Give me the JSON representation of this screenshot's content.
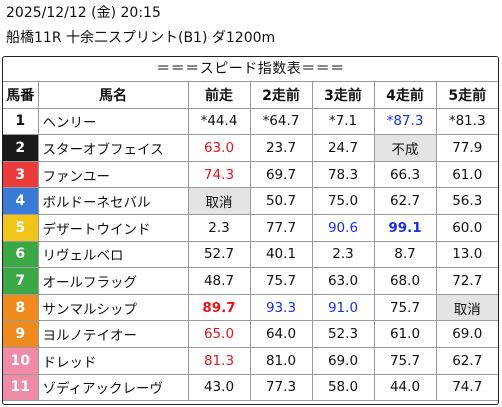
{
  "header": {
    "date": "2025/12/12 (金) 20:15",
    "race": "船橋11R 十余二スプリント(B1) ダ1200m"
  },
  "table": {
    "title": "＝＝＝スピード指数表＝＝＝",
    "columns": [
      "馬番",
      "馬名",
      "前走",
      "2走前",
      "3走前",
      "4走前",
      "5走前"
    ],
    "rows": [
      {
        "num": "1",
        "name": "ヘンリー",
        "color": "#ffffff",
        "numColor": "#111111",
        "vals": [
          {
            "v": "*44.4"
          },
          {
            "v": "*64.7"
          },
          {
            "v": "*7.1"
          },
          {
            "v": "*87.3",
            "s": "blue"
          },
          {
            "v": "*81.3"
          }
        ]
      },
      {
        "num": "2",
        "name": "スターオブフェイス",
        "color": "#1a1a1a",
        "numColor": "#ffffff",
        "vals": [
          {
            "v": "63.0",
            "s": "red"
          },
          {
            "v": "23.7"
          },
          {
            "v": "24.7"
          },
          {
            "v": "不成",
            "s": "gray"
          },
          {
            "v": "77.9"
          }
        ]
      },
      {
        "num": "3",
        "name": "ファンユー",
        "color": "#ec3b3b",
        "numColor": "#ffffff",
        "vals": [
          {
            "v": "74.3",
            "s": "red"
          },
          {
            "v": "69.7"
          },
          {
            "v": "78.3"
          },
          {
            "v": "66.3"
          },
          {
            "v": "61.0"
          }
        ]
      },
      {
        "num": "4",
        "name": "ボルドーネセバル",
        "color": "#3a7bd5",
        "numColor": "#ffffff",
        "vals": [
          {
            "v": "取消",
            "s": "gray"
          },
          {
            "v": "50.7"
          },
          {
            "v": "75.0"
          },
          {
            "v": "62.7"
          },
          {
            "v": "56.3"
          }
        ]
      },
      {
        "num": "5",
        "name": "デザートウインド",
        "color": "#f0c419",
        "numColor": "#ffffff",
        "vals": [
          {
            "v": "2.3"
          },
          {
            "v": "77.7"
          },
          {
            "v": "90.6",
            "s": "blue"
          },
          {
            "v": "99.1",
            "s": "blue bold"
          },
          {
            "v": "60.0"
          }
        ]
      },
      {
        "num": "6",
        "name": "リヴェルベロ",
        "color": "#3aa845",
        "numColor": "#ffffff",
        "vals": [
          {
            "v": "52.7"
          },
          {
            "v": "40.1"
          },
          {
            "v": "2.3"
          },
          {
            "v": "8.7"
          },
          {
            "v": "13.0"
          }
        ]
      },
      {
        "num": "7",
        "name": "オールフラッグ",
        "color": "#3aa845",
        "numColor": "#ffffff",
        "vals": [
          {
            "v": "48.7"
          },
          {
            "v": "75.7"
          },
          {
            "v": "63.0"
          },
          {
            "v": "68.0"
          },
          {
            "v": "72.7"
          }
        ]
      },
      {
        "num": "8",
        "name": "サンマルシップ",
        "color": "#ef8a1e",
        "numColor": "#ffffff",
        "vals": [
          {
            "v": "89.7",
            "s": "red bold"
          },
          {
            "v": "93.3",
            "s": "blue"
          },
          {
            "v": "91.0",
            "s": "blue"
          },
          {
            "v": "75.7"
          },
          {
            "v": "取消",
            "s": "gray"
          }
        ]
      },
      {
        "num": "9",
        "name": "ヨルノテイオー",
        "color": "#ef8a1e",
        "numColor": "#ffffff",
        "vals": [
          {
            "v": "65.0",
            "s": "red"
          },
          {
            "v": "64.0"
          },
          {
            "v": "52.3"
          },
          {
            "v": "61.0"
          },
          {
            "v": "69.0"
          }
        ]
      },
      {
        "num": "10",
        "name": "ドレッド",
        "color": "#f08ca8",
        "numColor": "#ffffff",
        "vals": [
          {
            "v": "81.3",
            "s": "red"
          },
          {
            "v": "81.0"
          },
          {
            "v": "69.0"
          },
          {
            "v": "75.7"
          },
          {
            "v": "62.7"
          }
        ]
      },
      {
        "num": "11",
        "name": "ゾディアックレーヴ",
        "color": "#f08ca8",
        "numColor": "#ffffff",
        "vals": [
          {
            "v": "43.0"
          },
          {
            "v": "77.3"
          },
          {
            "v": "58.0"
          },
          {
            "v": "44.0"
          },
          {
            "v": "74.7"
          }
        ]
      }
    ]
  }
}
